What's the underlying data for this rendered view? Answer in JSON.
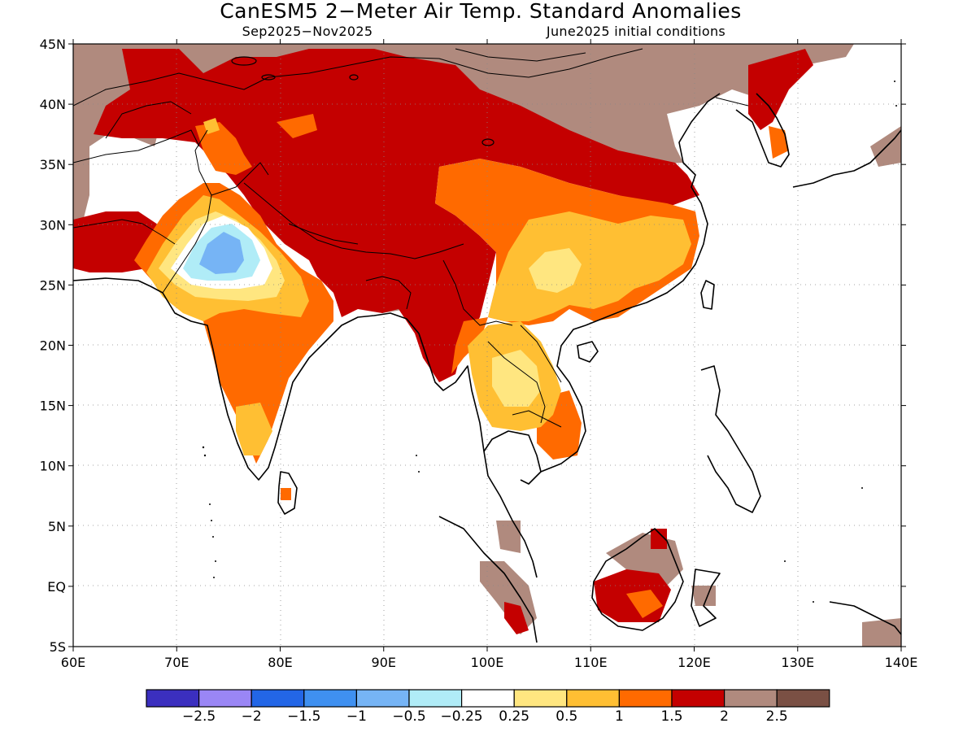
{
  "header": {
    "title": "CanESM5 2−Meter Air Temp. Standard Anomalies",
    "period": "Sep2025−Nov2025",
    "init": "June2025 initial conditions"
  },
  "axes": {
    "lat_labels": [
      "45N",
      "40N",
      "35N",
      "30N",
      "25N",
      "20N",
      "15N",
      "10N",
      "5N",
      "EQ",
      "5S"
    ],
    "lon_labels": [
      "60E",
      "70E",
      "80E",
      "90E",
      "100E",
      "110E",
      "120E",
      "130E",
      "140E"
    ]
  },
  "colorbar": {
    "colors": [
      "#3b2fbf",
      "#9a86f5",
      "#2366e6",
      "#3f90f0",
      "#76b4f5",
      "#b0ecf7",
      "#ffffff",
      "#ffe680",
      "#ffbf33",
      "#ff6a00",
      "#c40000",
      "#b08a7e",
      "#7a5044"
    ],
    "labels": [
      "−2.5",
      "−2",
      "−1.5",
      "−1",
      "−0.5",
      "−0.25",
      "0.25",
      "0.5",
      "1",
      "1.5",
      "2",
      "2.5"
    ]
  }
}
